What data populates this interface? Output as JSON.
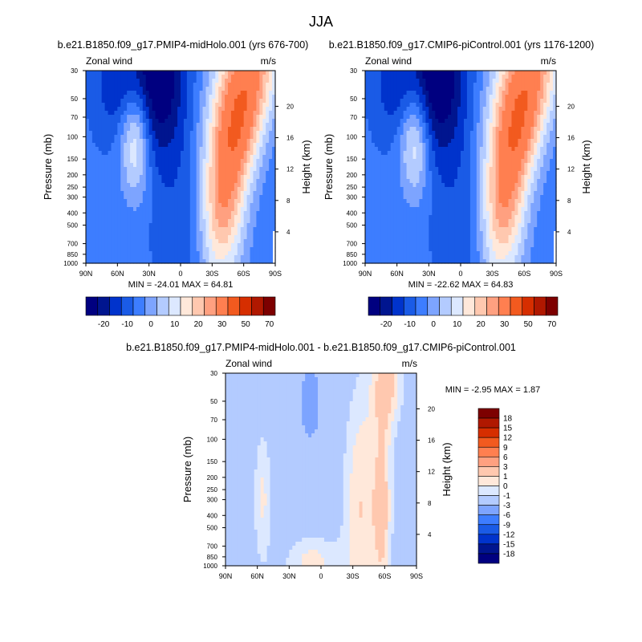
{
  "page": {
    "title": "JJA"
  },
  "chart_data": [
    {
      "type": "heatmap",
      "title": "b.e21.B1850.f09_g17.PMIP4-midHolo.001 (yrs 676-700)",
      "left_label": "Zonal wind",
      "right_label": "m/s",
      "ylabel": "Pressure (mb)",
      "y2label": "Height (km)",
      "x_ticks": [
        "90N",
        "60N",
        "30N",
        "0",
        "30S",
        "60S",
        "90S"
      ],
      "x_range": [
        90,
        -90
      ],
      "y_range_mb": [
        30,
        1000
      ],
      "y_ticks_mb": [
        30,
        50,
        70,
        100,
        150,
        200,
        250,
        300,
        400,
        500,
        700,
        850,
        1000
      ],
      "y2_ticks_km": [
        4,
        8,
        12,
        16,
        20
      ],
      "stats": "MIN = -24.01  MAX =  64.81",
      "colorbar_ticks": [
        "-20",
        "-10",
        "0",
        "10",
        "20",
        "30",
        "50",
        "70"
      ],
      "levels": [
        -25,
        -20,
        -15,
        -10,
        -5,
        0,
        5,
        10,
        15,
        20,
        25,
        30,
        40,
        50,
        60,
        70
      ],
      "colors": [
        "#000080",
        "#00158f",
        "#0033cc",
        "#1a5be6",
        "#3d7dff",
        "#7da4ff",
        "#b3cbff",
        "#dce8ff",
        "#ffe8da",
        "#ffc8af",
        "#ffa080",
        "#ff7f50",
        "#f25a1f",
        "#d62e00",
        "#b01800",
        "#7d0000"
      ]
    },
    {
      "type": "heatmap",
      "title": "b.e21.B1850.f09_g17.CMIP6-piControl.001 (yrs 1176-1200)",
      "left_label": "Zonal wind",
      "right_label": "m/s",
      "ylabel": "Pressure (mb)",
      "y2label": "Height (km)",
      "x_ticks": [
        "90N",
        "60N",
        "30N",
        "0",
        "30S",
        "60S",
        "90S"
      ],
      "x_range": [
        90,
        -90
      ],
      "y_range_mb": [
        30,
        1000
      ],
      "y_ticks_mb": [
        30,
        50,
        70,
        100,
        150,
        200,
        250,
        300,
        400,
        500,
        700,
        850,
        1000
      ],
      "y2_ticks_km": [
        4,
        8,
        12,
        16,
        20
      ],
      "stats": "MIN = -22.62  MAX =  64.83",
      "colorbar_ticks": [
        "-20",
        "-10",
        "0",
        "10",
        "20",
        "30",
        "50",
        "70"
      ],
      "levels": [
        -25,
        -20,
        -15,
        -10,
        -5,
        0,
        5,
        10,
        15,
        20,
        25,
        30,
        40,
        50,
        60,
        70
      ],
      "colors": [
        "#000080",
        "#00158f",
        "#0033cc",
        "#1a5be6",
        "#3d7dff",
        "#7da4ff",
        "#b3cbff",
        "#dce8ff",
        "#ffe8da",
        "#ffc8af",
        "#ffa080",
        "#ff7f50",
        "#f25a1f",
        "#d62e00",
        "#b01800",
        "#7d0000"
      ]
    },
    {
      "type": "heatmap",
      "title": "b.e21.B1850.f09_g17.PMIP4-midHolo.001 - b.e21.B1850.f09_g17.CMIP6-piControl.001",
      "left_label": "Zonal wind",
      "right_label": "m/s",
      "ylabel": "Pressure (mb)",
      "y2label": "Height (km)",
      "x_ticks": [
        "90N",
        "60N",
        "30N",
        "0",
        "30S",
        "60S",
        "90S"
      ],
      "x_range": [
        90,
        -90
      ],
      "y_range_mb": [
        30,
        1000
      ],
      "y_ticks_mb": [
        30,
        50,
        70,
        100,
        150,
        200,
        250,
        300,
        400,
        500,
        700,
        850,
        1000
      ],
      "y2_ticks_km": [
        4,
        8,
        12,
        16,
        20
      ],
      "stats": "MIN =  -2.95  MAX =   1.87",
      "colorbar_ticks": [
        "18",
        "15",
        "12",
        "9",
        "6",
        "3",
        "1",
        "0",
        "-1",
        "-3",
        "-6",
        "-9",
        "-12",
        "-15",
        "-18"
      ],
      "colors_top_down": [
        "#7d0000",
        "#b01800",
        "#d62e00",
        "#f25a1f",
        "#ff7f50",
        "#ffa080",
        "#ffc8af",
        "#ffe8da",
        "#dce8ff",
        "#b3cbff",
        "#7da4ff",
        "#3d7dff",
        "#1a5be6",
        "#0033cc",
        "#00158f",
        "#000080"
      ]
    }
  ]
}
